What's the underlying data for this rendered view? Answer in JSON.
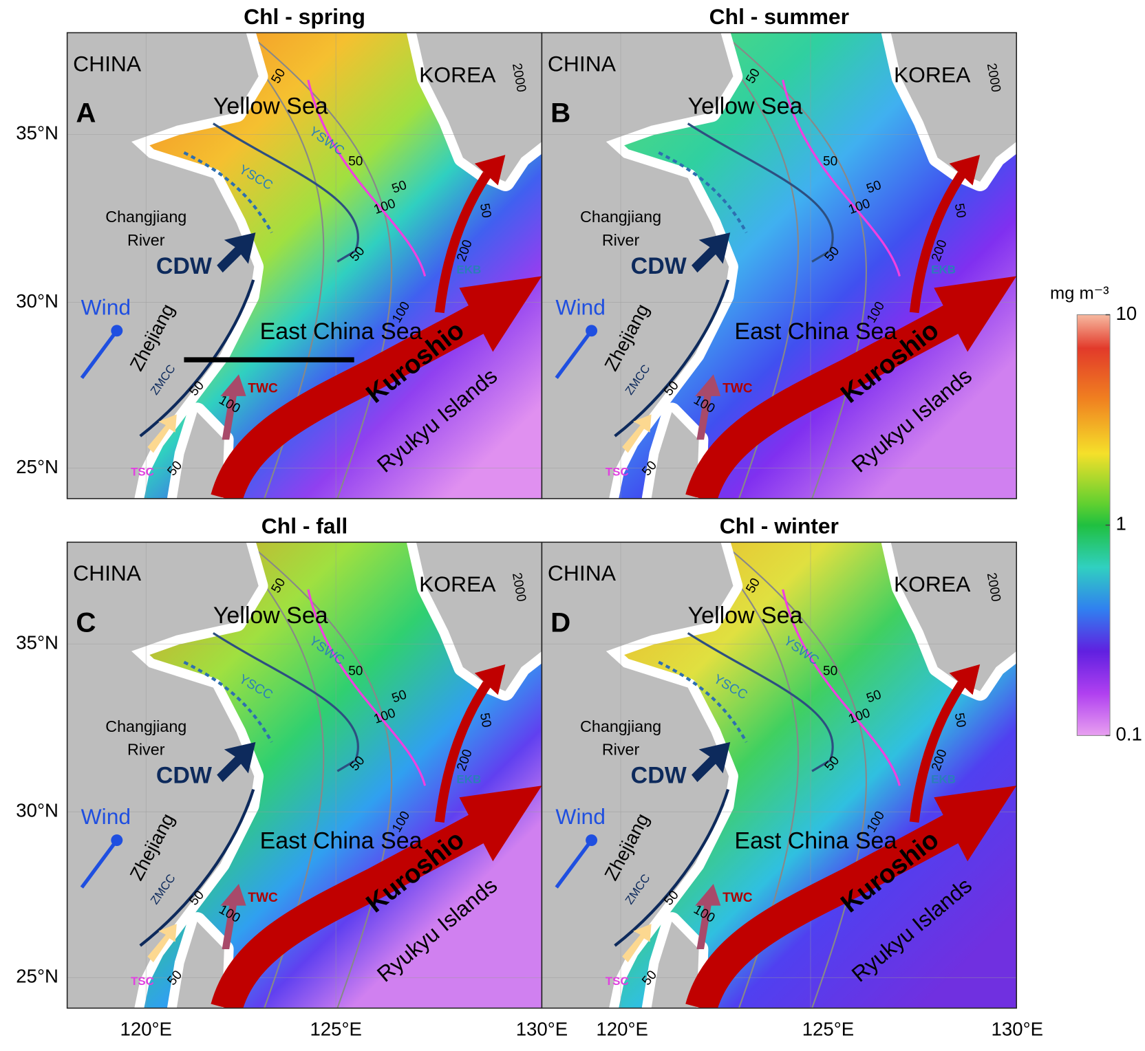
{
  "figure": {
    "panels": [
      {
        "title": "Chl - spring",
        "letter": "A",
        "labels": [
          "CHINA",
          "KOREA",
          "Yellow Sea",
          "YSWC",
          "YSCC",
          "Changjiang",
          "River",
          "CDW",
          "Wind",
          "Zhejiang",
          "East China Sea",
          "ZMCC",
          "TWC",
          "Kuroshio",
          "Ryukyu Islands",
          "EKB",
          "TSC",
          "50",
          "2000",
          "50",
          "50",
          "100",
          "50",
          "50",
          "100",
          "50",
          "100",
          "200",
          "50"
        ]
      },
      {
        "title": "Chl - summer",
        "letter": "B",
        "labels": [
          "CHINA",
          "KOREA",
          "Yellow Sea",
          "Changjiang",
          "River",
          "CDW",
          "Wind",
          "Zhejiang",
          "East China Sea",
          "ZMCC",
          "TWC",
          "Kuroshio",
          "Ryukyu Islands",
          "EKB",
          "TSC",
          "50",
          "2000",
          "50",
          "50",
          "100",
          "50",
          "50",
          "100",
          "50",
          "100",
          "200",
          "50"
        ]
      },
      {
        "title": "Chl - fall",
        "letter": "C",
        "labels": [
          "CHINA",
          "KOREA",
          "Yellow Sea",
          "YSWC",
          "YSCC",
          "Changjiang",
          "River",
          "CDW",
          "Wind",
          "Zhejiang",
          "East China Sea",
          "ZMCC",
          "TWC",
          "Kuroshio",
          "Ryukyu Islands",
          "EKB",
          "TSC",
          "50",
          "2000",
          "50",
          "50",
          "100",
          "50",
          "50",
          "100",
          "50",
          "100",
          "200",
          "50"
        ]
      },
      {
        "title": "Chl - winter",
        "letter": "D",
        "labels": [
          "CHINA",
          "KOREA",
          "Yellow Sea",
          "YSWC",
          "YSCC",
          "Changjiang",
          "River",
          "CDW",
          "Wind",
          "Zhejiang",
          "East China Sea",
          "ZMCC",
          "TWC",
          "Kuroshio",
          "Ryukyu Islands",
          "EKB",
          "TSC",
          "50",
          "2000",
          "50",
          "50",
          "100",
          "50",
          "50",
          "100",
          "50",
          "100",
          "200",
          "50"
        ]
      }
    ],
    "lat_ticks": [
      "35°N",
      "30°N",
      "25°N"
    ],
    "lon_ticks": [
      "120°E",
      "125°E",
      "130°E"
    ],
    "colorbar": {
      "unit": "mg m⁻³",
      "ticks": [
        10,
        1,
        0.1
      ],
      "range": [
        0.1,
        10
      ],
      "scale": "log"
    }
  }
}
